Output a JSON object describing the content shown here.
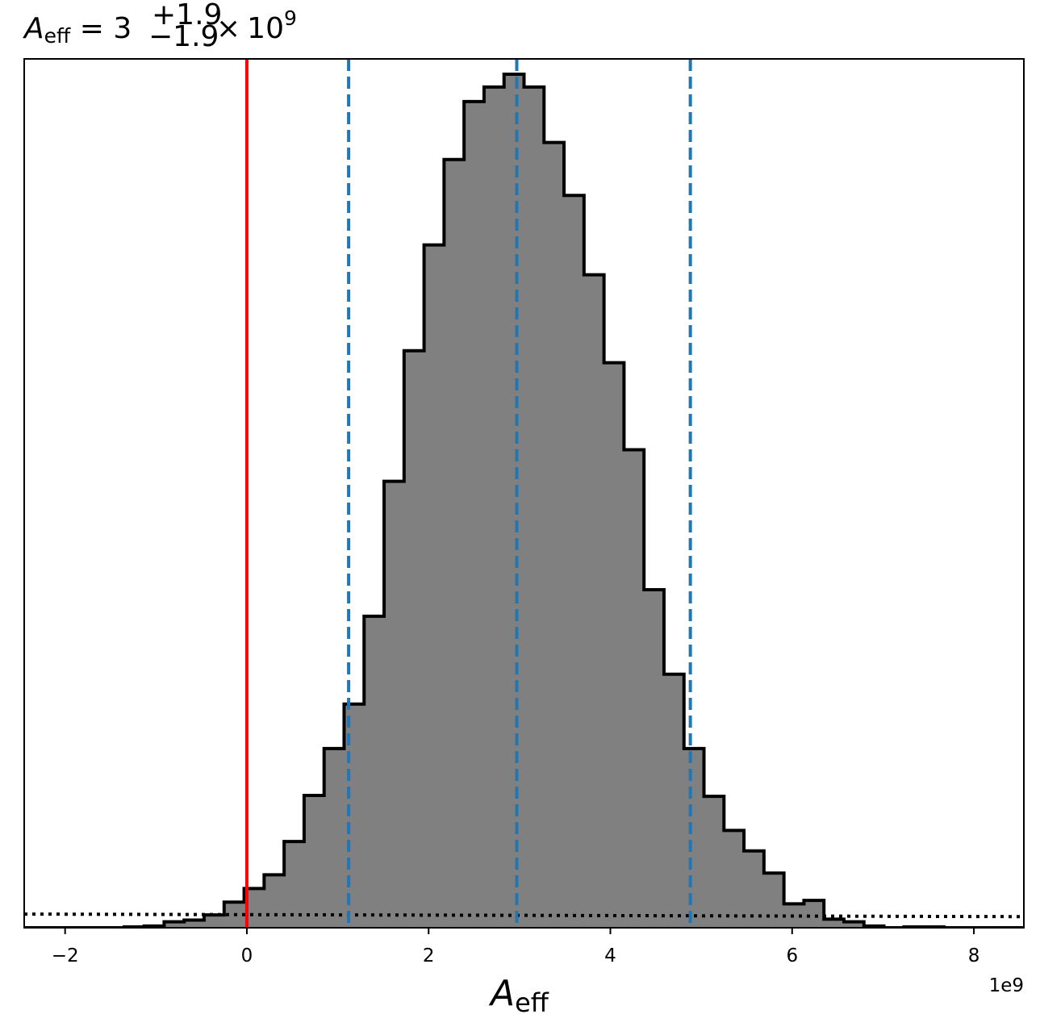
{
  "chart_data": {
    "type": "bar",
    "title": {
      "lhs_symbol": "A",
      "lhs_subscript": "eff",
      "equals": " = ",
      "value": "3",
      "upper_error": "+1.9",
      "lower_error": "−1.9",
      "times": "×",
      "base": "10",
      "exponent": "9"
    },
    "xlabel": {
      "symbol": "A",
      "subscript": "eff"
    },
    "ylabel": "",
    "x_offset_label": "1e9",
    "x_scale": 1000000000.0,
    "xlim": [
      -2.45,
      8.55
    ],
    "ylim": [
      0,
      1.0
    ],
    "grid": false,
    "xticks": [
      {
        "value": -2,
        "label": "−2"
      },
      {
        "value": 0,
        "label": "0"
      },
      {
        "value": 2,
        "label": "2"
      },
      {
        "value": 4,
        "label": "4"
      },
      {
        "value": 6,
        "label": "6"
      },
      {
        "value": 8,
        "label": "8"
      }
    ],
    "histogram": {
      "fill_color": "#808080",
      "edge_color": "#000000",
      "bin_edges": [
        -2.45,
        -2.23,
        -2.01,
        -1.79,
        -1.57,
        -1.35,
        -1.13,
        -0.91,
        -0.69,
        -0.47,
        -0.25,
        -0.03,
        0.19,
        0.41,
        0.63,
        0.85,
        1.07,
        1.29,
        1.51,
        1.73,
        1.95,
        2.17,
        2.39,
        2.61,
        2.83,
        3.05,
        3.27,
        3.49,
        3.71,
        3.93,
        4.15,
        4.37,
        4.59,
        4.81,
        5.03,
        5.25,
        5.47,
        5.69,
        5.91,
        6.13,
        6.35,
        6.57,
        6.79,
        7.01,
        7.23,
        7.45,
        7.67,
        7.89,
        8.11,
        8.33,
        8.55
      ],
      "heights": [
        0.0,
        0.0,
        0.0,
        0.0,
        0.0,
        0.001,
        0.002,
        0.007,
        0.009,
        0.015,
        0.03,
        0.046,
        0.062,
        0.101,
        0.155,
        0.21,
        0.262,
        0.365,
        0.523,
        0.676,
        0.8,
        0.9,
        0.968,
        0.985,
        1.0,
        0.985,
        0.92,
        0.858,
        0.765,
        0.662,
        0.56,
        0.396,
        0.297,
        0.21,
        0.154,
        0.114,
        0.09,
        0.064,
        0.028,
        0.032,
        0.01,
        0.007,
        0.002,
        0.0,
        0.001,
        0.001,
        0.0,
        0.0,
        0.0,
        0.0
      ]
    },
    "vertical_lines": [
      {
        "x": 0.0,
        "color": "#ff0000",
        "style": "solid"
      },
      {
        "x": 1.12,
        "color": "#1f77b4",
        "style": "dashed"
      },
      {
        "x": 2.97,
        "color": "#1f77b4",
        "style": "dashed"
      },
      {
        "x": 4.88,
        "color": "#1f77b4",
        "style": "dashed"
      }
    ],
    "prior_line": {
      "color": "#000000",
      "style": "dotted",
      "x": [
        -2.45,
        8.55
      ],
      "y": [
        0.016,
        0.013
      ]
    }
  }
}
